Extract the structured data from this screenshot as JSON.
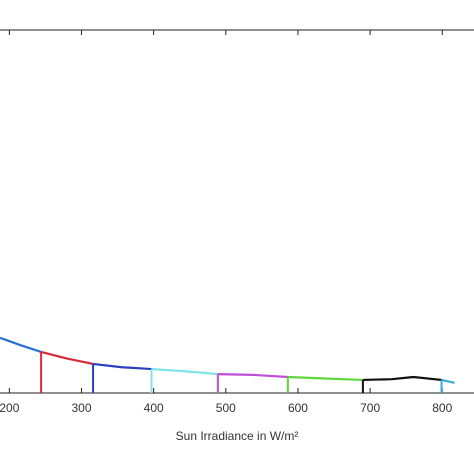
{
  "chart_data": {
    "type": "line",
    "xlabel": "Sun Irradiance in W/m²",
    "xlim": [
      187,
      844
    ],
    "xticks": [
      200,
      300,
      400,
      500,
      600,
      700,
      800
    ],
    "ylim": [
      0,
      100
    ],
    "series": [
      {
        "color": "#2a6fd6",
        "x": [
          187,
          215,
          244
        ],
        "values": [
          15.2,
          13.2,
          11.3
        ]
      },
      {
        "color": "#d62a3a",
        "x": [
          244,
          280,
          316
        ],
        "values": [
          11.3,
          9.5,
          8.0
        ]
      },
      {
        "color": "#2a3fc0",
        "x": [
          316,
          356,
          397
        ],
        "values": [
          8.0,
          7.1,
          6.6
        ]
      },
      {
        "color": "#7fe3e8",
        "x": [
          397,
          443,
          489
        ],
        "values": [
          6.6,
          6.0,
          5.2
        ]
      },
      {
        "color": "#c04fd6",
        "x": [
          489,
          537,
          586
        ],
        "values": [
          5.2,
          5.0,
          4.4
        ]
      },
      {
        "color": "#5fd63a",
        "x": [
          586,
          638,
          690
        ],
        "values": [
          4.4,
          4.0,
          3.6
        ]
      },
      {
        "color": "#111111",
        "x": [
          690,
          730,
          760,
          799
        ],
        "values": [
          3.6,
          3.8,
          4.4,
          3.6
        ]
      },
      {
        "color": "#3aa8e0",
        "x": [
          799,
          817
        ],
        "values": [
          3.6,
          2.8
        ]
      }
    ]
  }
}
